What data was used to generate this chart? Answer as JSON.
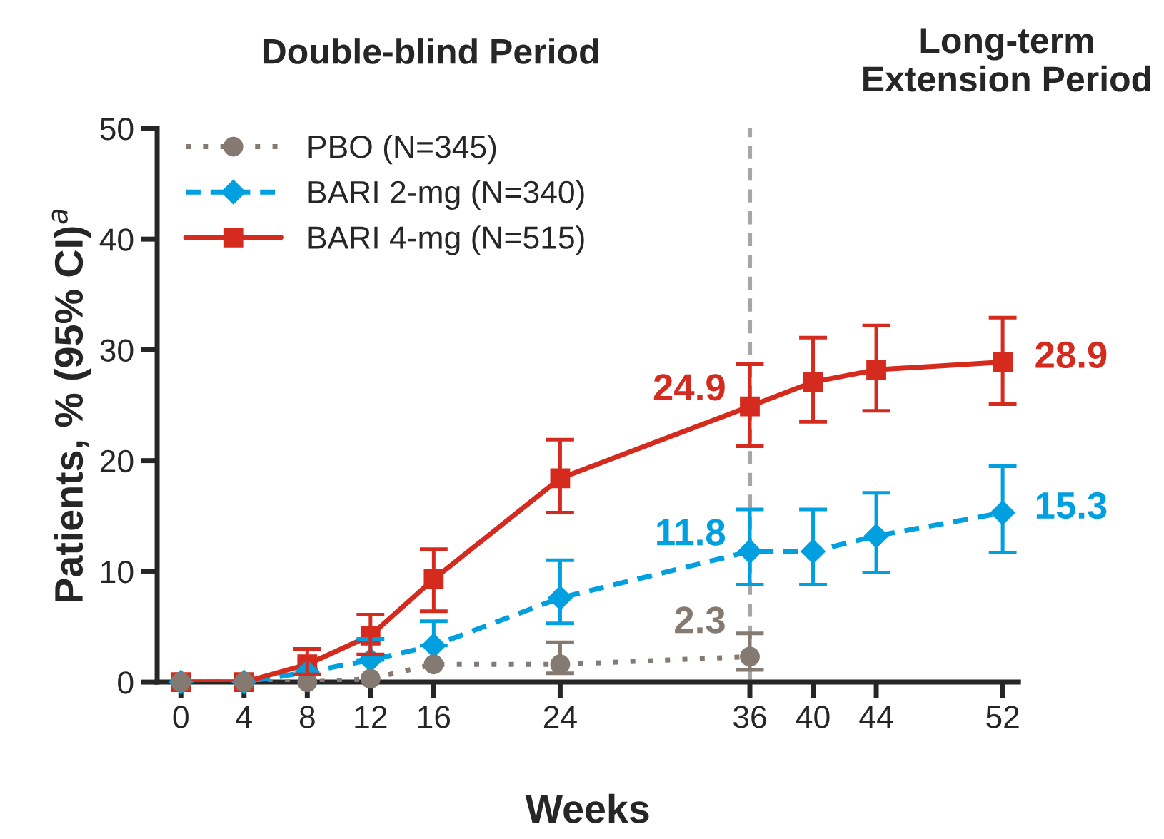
{
  "chart_data": {
    "type": "line",
    "xlabel": "Weeks",
    "ylabel": "Patients, % (95% CI)$^{a}$",
    "annotations": [
      "Double-blind Period",
      "Long-term\nExtension Period"
    ],
    "xlim": [
      -1.5,
      53
    ],
    "ylim": [
      0,
      50
    ],
    "xticks": [
      0,
      4,
      8,
      12,
      16,
      24,
      36,
      40,
      44,
      52
    ],
    "yticks": [
      0,
      10,
      20,
      30,
      40,
      50
    ],
    "legend": "top left",
    "grid": false,
    "ref_lines": [
      {
        "axis": "x",
        "value": 36,
        "color": "#a6a6a6",
        "line_style": "dashed"
      }
    ],
    "series": [
      {
        "name": "PBO (N=345)",
        "color": "#857a72",
        "marker": "circle",
        "line_style": "dotted",
        "x": [
          0,
          4,
          8,
          12,
          16,
          24,
          36
        ],
        "values": [
          0,
          0,
          0,
          0.3,
          1.6,
          1.6,
          2.3
        ],
        "errors": [
          null,
          null,
          null,
          null,
          null,
          [
            0.8,
            3.6
          ],
          [
            1.1,
            4.4
          ]
        ],
        "value_labels": [
          null,
          null,
          null,
          null,
          null,
          null,
          "2.3"
        ]
      },
      {
        "name": "BARI 2-mg (N=340)",
        "color": "#00a0e0",
        "marker": "diamond",
        "line_style": "dashed",
        "x": [
          0,
          4,
          8,
          12,
          16,
          24,
          36,
          40,
          44,
          52
        ],
        "values": [
          0,
          0,
          0.9,
          2.0,
          3.3,
          7.6,
          11.8,
          11.8,
          13.2,
          15.3
        ],
        "errors": [
          null,
          null,
          null,
          [
            2.0,
            3.9
          ],
          [
            3.3,
            5.5
          ],
          [
            5.3,
            11.0
          ],
          [
            8.8,
            15.6
          ],
          [
            8.8,
            15.6
          ],
          [
            9.9,
            17.1
          ],
          [
            11.7,
            19.5
          ]
        ],
        "value_labels": [
          null,
          null,
          null,
          null,
          null,
          null,
          "11.8",
          null,
          null,
          "15.3"
        ]
      },
      {
        "name": "BARI 4-mg (N=515)",
        "color": "#d52b1e",
        "marker": "square",
        "line_style": "solid",
        "x": [
          0,
          4,
          8,
          12,
          16,
          24,
          36,
          40,
          44,
          52
        ],
        "values": [
          0,
          0,
          1.6,
          4.2,
          9.3,
          18.4,
          24.9,
          27.1,
          28.2,
          28.9
        ],
        "errors": [
          null,
          null,
          [
            0.7,
            3.0
          ],
          [
            2.5,
            6.1
          ],
          [
            6.4,
            12.0
          ],
          [
            15.3,
            21.9
          ],
          [
            21.3,
            28.7
          ],
          [
            23.5,
            31.1
          ],
          [
            24.5,
            32.2
          ],
          [
            25.1,
            32.9
          ]
        ],
        "value_labels": [
          null,
          null,
          null,
          null,
          null,
          null,
          "24.9",
          null,
          null,
          "28.9"
        ]
      }
    ]
  }
}
